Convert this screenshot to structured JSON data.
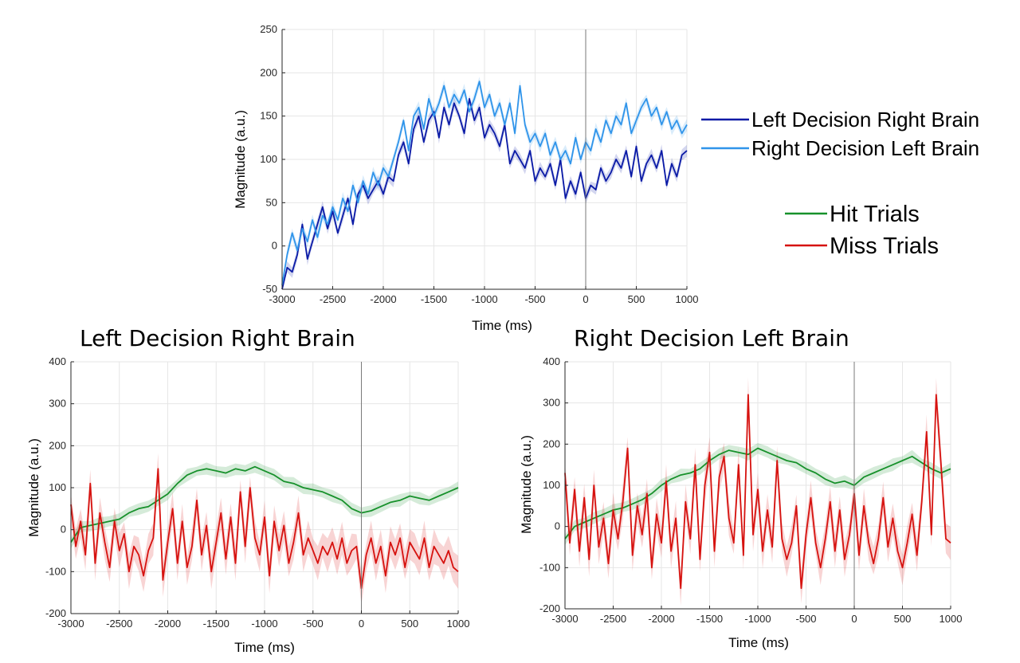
{
  "legend_top": [
    {
      "label": "Left Decision Right Brain",
      "color": "#0a1aa6"
    },
    {
      "label": "Right Decision Left Brain",
      "color": "#2f94ea"
    }
  ],
  "legend_trials": [
    {
      "label": "Hit Trials",
      "color": "#17912b"
    },
    {
      "label": "Miss Trials",
      "color": "#d6120f"
    }
  ],
  "chart_data": [
    {
      "type": "line",
      "title": "",
      "xlabel": "Time (ms)",
      "ylabel": "Magnitude (a.u.)",
      "xlim": [
        -3000,
        1000
      ],
      "ylim": [
        -50,
        250
      ],
      "xticks": [
        -3000,
        -2500,
        -2000,
        -1500,
        -1000,
        -500,
        0,
        500,
        1000
      ],
      "yticks": [
        -50,
        0,
        50,
        100,
        150,
        200,
        250
      ],
      "grid": true,
      "vline_x": 0,
      "series": [
        {
          "name": "Left Decision Right Brain",
          "color": "#0a1aa6",
          "x": [
            -3000,
            -2950,
            -2900,
            -2850,
            -2800,
            -2750,
            -2700,
            -2650,
            -2600,
            -2550,
            -2500,
            -2450,
            -2400,
            -2350,
            -2300,
            -2250,
            -2200,
            -2150,
            -2100,
            -2050,
            -2000,
            -1950,
            -1900,
            -1850,
            -1800,
            -1750,
            -1700,
            -1650,
            -1600,
            -1550,
            -1500,
            -1450,
            -1400,
            -1350,
            -1300,
            -1250,
            -1200,
            -1150,
            -1100,
            -1050,
            -1000,
            -950,
            -900,
            -850,
            -800,
            -750,
            -700,
            -650,
            -600,
            -550,
            -500,
            -450,
            -400,
            -350,
            -300,
            -250,
            -200,
            -150,
            -100,
            -50,
            0,
            50,
            100,
            150,
            200,
            250,
            300,
            350,
            400,
            450,
            500,
            550,
            600,
            650,
            700,
            750,
            800,
            850,
            900,
            950,
            1000
          ],
          "y": [
            -55,
            -25,
            -30,
            -10,
            25,
            -15,
            5,
            25,
            45,
            20,
            40,
            15,
            35,
            55,
            25,
            60,
            70,
            55,
            65,
            75,
            60,
            80,
            75,
            105,
            120,
            95,
            135,
            150,
            120,
            145,
            155,
            125,
            160,
            140,
            165,
            150,
            130,
            170,
            145,
            160,
            125,
            140,
            130,
            115,
            140,
            95,
            110,
            100,
            90,
            110,
            75,
            90,
            80,
            95,
            70,
            100,
            55,
            75,
            60,
            85,
            55,
            70,
            65,
            90,
            75,
            85,
            100,
            90,
            110,
            80,
            115,
            75,
            95,
            105,
            90,
            110,
            70,
            95,
            80,
            105,
            110
          ]
        },
        {
          "name": "Right Decision Left Brain",
          "color": "#2f94ea",
          "x": [
            -3000,
            -2950,
            -2900,
            -2850,
            -2800,
            -2750,
            -2700,
            -2650,
            -2600,
            -2550,
            -2500,
            -2450,
            -2400,
            -2350,
            -2300,
            -2250,
            -2200,
            -2150,
            -2100,
            -2050,
            -2000,
            -1950,
            -1900,
            -1850,
            -1800,
            -1750,
            -1700,
            -1650,
            -1600,
            -1550,
            -1500,
            -1450,
            -1400,
            -1350,
            -1300,
            -1250,
            -1200,
            -1150,
            -1100,
            -1050,
            -1000,
            -950,
            -900,
            -850,
            -800,
            -750,
            -700,
            -650,
            -600,
            -550,
            -500,
            -450,
            -400,
            -350,
            -300,
            -250,
            -200,
            -150,
            -100,
            -50,
            0,
            50,
            100,
            150,
            200,
            250,
            300,
            350,
            400,
            450,
            500,
            550,
            600,
            650,
            700,
            750,
            800,
            850,
            900,
            950,
            1000
          ],
          "y": [
            -45,
            -10,
            15,
            -5,
            20,
            5,
            30,
            10,
            35,
            25,
            45,
            30,
            55,
            40,
            70,
            50,
            75,
            60,
            85,
            70,
            90,
            80,
            100,
            120,
            145,
            110,
            150,
            160,
            135,
            170,
            150,
            165,
            185,
            160,
            175,
            165,
            180,
            155,
            170,
            190,
            160,
            175,
            150,
            165,
            140,
            165,
            130,
            185,
            140,
            120,
            130,
            115,
            130,
            105,
            120,
            100,
            110,
            95,
            125,
            100,
            120,
            110,
            135,
            120,
            145,
            130,
            150,
            140,
            165,
            130,
            145,
            160,
            170,
            150,
            160,
            140,
            155,
            135,
            145,
            130,
            140
          ]
        }
      ]
    },
    {
      "type": "line",
      "title": "Left Decision Right Brain",
      "xlabel": "Time (ms)",
      "ylabel": "Magnitude (a.u.)",
      "xlim": [
        -3000,
        1000
      ],
      "ylim": [
        -200,
        400
      ],
      "xticks": [
        -3000,
        -2500,
        -2000,
        -1500,
        -1000,
        -500,
        0,
        500,
        1000
      ],
      "yticks": [
        -200,
        -100,
        0,
        100,
        200,
        300,
        400
      ],
      "grid": true,
      "vline_x": 0,
      "series": [
        {
          "name": "Hit Trials",
          "color": "#17912b",
          "x": [
            -3000,
            -2900,
            -2800,
            -2700,
            -2600,
            -2500,
            -2400,
            -2300,
            -2200,
            -2100,
            -2000,
            -1900,
            -1800,
            -1700,
            -1600,
            -1500,
            -1400,
            -1300,
            -1200,
            -1100,
            -1000,
            -900,
            -800,
            -700,
            -600,
            -500,
            -400,
            -300,
            -200,
            -100,
            0,
            100,
            200,
            300,
            400,
            500,
            600,
            700,
            800,
            900,
            1000
          ],
          "y": [
            -30,
            5,
            10,
            15,
            20,
            25,
            40,
            50,
            55,
            70,
            85,
            110,
            130,
            140,
            145,
            140,
            135,
            145,
            140,
            150,
            140,
            130,
            115,
            110,
            100,
            95,
            90,
            80,
            70,
            50,
            40,
            45,
            55,
            65,
            70,
            80,
            75,
            70,
            80,
            90,
            100
          ]
        },
        {
          "name": "Miss Trials",
          "color": "#d6120f",
          "x": [
            -3000,
            -2950,
            -2900,
            -2850,
            -2800,
            -2750,
            -2700,
            -2650,
            -2600,
            -2550,
            -2500,
            -2450,
            -2400,
            -2350,
            -2300,
            -2250,
            -2200,
            -2150,
            -2100,
            -2050,
            -2000,
            -1950,
            -1900,
            -1850,
            -1800,
            -1750,
            -1700,
            -1650,
            -1600,
            -1550,
            -1500,
            -1450,
            -1400,
            -1350,
            -1300,
            -1250,
            -1200,
            -1150,
            -1100,
            -1050,
            -1000,
            -950,
            -900,
            -850,
            -800,
            -750,
            -700,
            -650,
            -600,
            -550,
            -500,
            -450,
            -400,
            -350,
            -300,
            -250,
            -200,
            -150,
            -100,
            -50,
            0,
            50,
            100,
            150,
            200,
            250,
            300,
            350,
            400,
            450,
            500,
            550,
            600,
            650,
            700,
            750,
            800,
            850,
            900,
            950,
            1000
          ],
          "y": [
            60,
            -40,
            20,
            -60,
            110,
            -80,
            40,
            -30,
            -90,
            20,
            -50,
            -10,
            -100,
            -40,
            -60,
            -110,
            -50,
            -20,
            145,
            -120,
            -30,
            50,
            -80,
            20,
            -90,
            -40,
            70,
            -60,
            10,
            -100,
            -30,
            40,
            -70,
            30,
            -80,
            90,
            -40,
            100,
            -20,
            -60,
            30,
            -110,
            20,
            -50,
            10,
            -80,
            -30,
            40,
            -60,
            -20,
            -50,
            -80,
            -40,
            -60,
            -30,
            -70,
            -20,
            -80,
            -50,
            -40,
            -140,
            -60,
            -20,
            -80,
            -40,
            -110,
            -30,
            -60,
            -20,
            -90,
            -30,
            -50,
            -70,
            -20,
            -90,
            -40,
            -60,
            -80,
            -50,
            -90,
            -100
          ]
        }
      ]
    },
    {
      "type": "line",
      "title": "Right Decision Left Brain",
      "xlabel": "Time (ms)",
      "ylabel": "Magnitude (a.u.)",
      "xlim": [
        -3000,
        1000
      ],
      "ylim": [
        -200,
        400
      ],
      "xticks": [
        -3000,
        -2500,
        -2000,
        -1500,
        -1000,
        -500,
        0,
        500,
        1000
      ],
      "yticks": [
        -200,
        -100,
        0,
        100,
        200,
        300,
        400
      ],
      "grid": true,
      "vline_x": 0,
      "series": [
        {
          "name": "Hit Trials",
          "color": "#17912b",
          "x": [
            -3000,
            -2900,
            -2800,
            -2700,
            -2600,
            -2500,
            -2400,
            -2300,
            -2200,
            -2100,
            -2000,
            -1900,
            -1800,
            -1700,
            -1600,
            -1500,
            -1400,
            -1300,
            -1200,
            -1100,
            -1000,
            -900,
            -800,
            -700,
            -600,
            -500,
            -400,
            -300,
            -200,
            -100,
            0,
            100,
            200,
            300,
            400,
            500,
            600,
            700,
            800,
            900,
            1000
          ],
          "y": [
            -30,
            0,
            10,
            20,
            30,
            40,
            45,
            55,
            65,
            80,
            100,
            115,
            125,
            130,
            140,
            160,
            175,
            185,
            180,
            175,
            190,
            180,
            170,
            160,
            155,
            140,
            130,
            115,
            105,
            110,
            100,
            120,
            130,
            140,
            150,
            160,
            170,
            155,
            140,
            130,
            140
          ]
        },
        {
          "name": "Miss Trials",
          "color": "#d6120f",
          "x": [
            -3000,
            -2950,
            -2900,
            -2850,
            -2800,
            -2750,
            -2700,
            -2650,
            -2600,
            -2550,
            -2500,
            -2450,
            -2400,
            -2350,
            -2300,
            -2250,
            -2200,
            -2150,
            -2100,
            -2050,
            -2000,
            -1950,
            -1900,
            -1850,
            -1800,
            -1750,
            -1700,
            -1650,
            -1600,
            -1550,
            -1500,
            -1450,
            -1400,
            -1350,
            -1300,
            -1250,
            -1200,
            -1150,
            -1100,
            -1050,
            -1000,
            -950,
            -900,
            -850,
            -800,
            -750,
            -700,
            -650,
            -600,
            -550,
            -500,
            -450,
            -400,
            -350,
            -300,
            -250,
            -200,
            -150,
            -100,
            -50,
            0,
            50,
            100,
            150,
            200,
            250,
            300,
            350,
            400,
            450,
            500,
            550,
            600,
            650,
            700,
            750,
            800,
            850,
            900,
            950,
            1000
          ],
          "y": [
            130,
            -40,
            90,
            -60,
            70,
            -80,
            100,
            -50,
            20,
            -90,
            40,
            -30,
            60,
            190,
            -70,
            50,
            -20,
            80,
            -100,
            30,
            -40,
            110,
            -60,
            20,
            -150,
            60,
            -30,
            150,
            -80,
            100,
            180,
            -60,
            120,
            170,
            20,
            -40,
            150,
            -70,
            320,
            -20,
            90,
            -60,
            40,
            -50,
            160,
            -30,
            -80,
            -40,
            50,
            -150,
            -20,
            70,
            -40,
            -100,
            -30,
            60,
            -60,
            40,
            -80,
            -20,
            80,
            -70,
            50,
            -40,
            -90,
            -30,
            70,
            -50,
            20,
            -60,
            -100,
            -40,
            30,
            -70,
            60,
            230,
            -20,
            320,
            150,
            -30,
            -40
          ]
        }
      ]
    }
  ]
}
